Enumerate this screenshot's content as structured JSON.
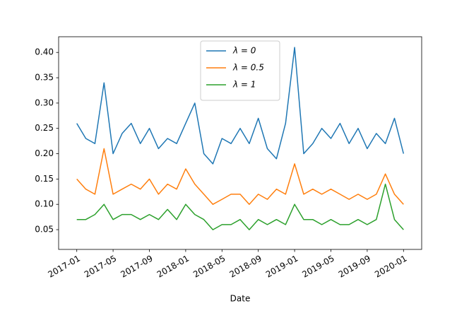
{
  "chart_data": {
    "type": "line",
    "xlabel": "Date",
    "x": [
      "2017-01",
      "2017-02",
      "2017-03",
      "2017-04",
      "2017-05",
      "2017-06",
      "2017-07",
      "2017-08",
      "2017-09",
      "2017-10",
      "2017-11",
      "2017-12",
      "2018-01",
      "2018-02",
      "2018-03",
      "2018-04",
      "2018-05",
      "2018-06",
      "2018-07",
      "2018-08",
      "2018-09",
      "2018-10",
      "2018-11",
      "2018-12",
      "2019-01",
      "2019-02",
      "2019-03",
      "2019-04",
      "2019-05",
      "2019-06",
      "2019-07",
      "2019-08",
      "2019-09",
      "2019-10",
      "2019-11",
      "2019-12",
      "2020-01"
    ],
    "series": [
      {
        "name": "λ = 0",
        "color": "#1f77b4",
        "values": [
          0.26,
          0.23,
          0.22,
          0.34,
          0.2,
          0.24,
          0.26,
          0.22,
          0.25,
          0.21,
          0.23,
          0.22,
          0.26,
          0.3,
          0.2,
          0.18,
          0.23,
          0.22,
          0.25,
          0.22,
          0.27,
          0.21,
          0.19,
          0.26,
          0.41,
          0.2,
          0.22,
          0.25,
          0.23,
          0.26,
          0.22,
          0.25,
          0.21,
          0.24,
          0.22,
          0.27,
          0.2
        ]
      },
      {
        "name": "λ = 0.5",
        "color": "#ff7f0e",
        "values": [
          0.15,
          0.13,
          0.12,
          0.21,
          0.12,
          0.13,
          0.14,
          0.13,
          0.15,
          0.12,
          0.14,
          0.13,
          0.17,
          0.14,
          0.12,
          0.1,
          0.11,
          0.12,
          0.12,
          0.1,
          0.12,
          0.11,
          0.13,
          0.12,
          0.18,
          0.12,
          0.13,
          0.12,
          0.13,
          0.12,
          0.11,
          0.12,
          0.11,
          0.12,
          0.16,
          0.12,
          0.1
        ]
      },
      {
        "name": "λ = 1",
        "color": "#2ca02c",
        "values": [
          0.07,
          0.07,
          0.08,
          0.1,
          0.07,
          0.08,
          0.08,
          0.07,
          0.08,
          0.07,
          0.09,
          0.07,
          0.1,
          0.08,
          0.07,
          0.05,
          0.06,
          0.06,
          0.07,
          0.05,
          0.07,
          0.06,
          0.07,
          0.06,
          0.1,
          0.07,
          0.07,
          0.06,
          0.07,
          0.06,
          0.06,
          0.07,
          0.06,
          0.07,
          0.14,
          0.07,
          0.05
        ]
      }
    ],
    "xlim": [
      "2016-11",
      "2020-03"
    ],
    "xticks": [
      "2017-01",
      "2017-05",
      "2017-09",
      "2018-01",
      "2018-05",
      "2018-09",
      "2019-01",
      "2019-05",
      "2019-09",
      "2020-01"
    ],
    "ylim": [
      0.011,
      0.431
    ],
    "yticks": [
      0.05,
      {
        "value": 0.1,
        "label": "0.10"
      },
      0.15,
      {
        "value": 0.2,
        "label": "0.20"
      },
      0.25,
      {
        "value": 0.3,
        "label": "0.30"
      },
      0.35,
      {
        "value": 0.4,
        "label": "0.40"
      }
    ],
    "legend": "upper center"
  }
}
